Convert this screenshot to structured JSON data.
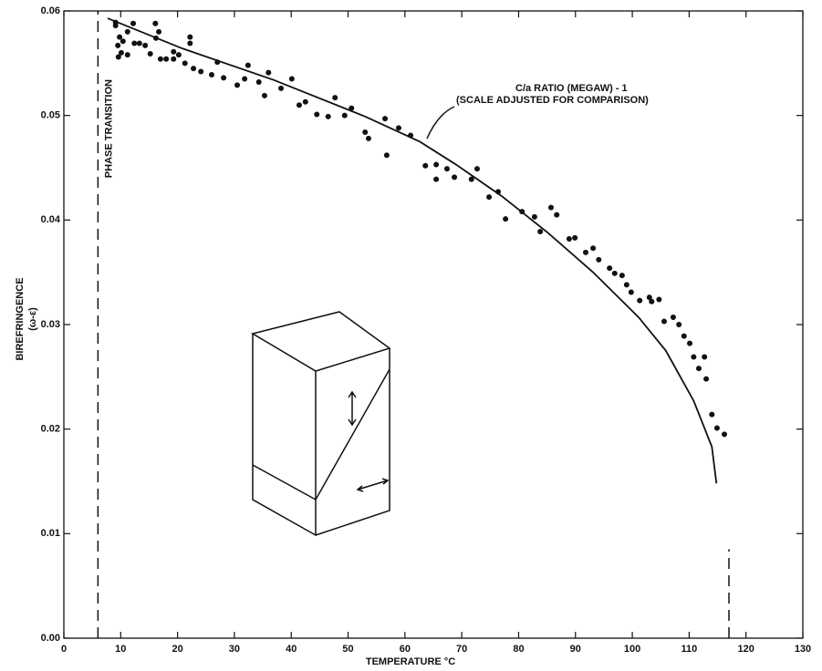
{
  "chart_data": {
    "type": "scatter",
    "xlabel": "TEMPERATURE °C",
    "ylabel": [
      "BIREFRINGENCE",
      "(ω-ε)"
    ],
    "xlim": [
      0,
      130
    ],
    "ylim": [
      0,
      0.06
    ],
    "xticks": [
      0,
      10,
      20,
      30,
      40,
      50,
      60,
      70,
      80,
      90,
      100,
      110,
      120,
      130
    ],
    "yticks": [
      {
        "value": 0,
        "label": "0.00"
      },
      {
        "value": 0.01,
        "label": "0.01"
      },
      {
        "value": 0.02,
        "label": "0.02"
      },
      {
        "value": 0.03,
        "label": "0.03"
      },
      {
        "value": 0.04,
        "label": "0.04"
      },
      {
        "value": 0.05,
        "label": "0.05"
      },
      {
        "value": 0.06,
        "label": "0.06"
      }
    ],
    "color": "#111111",
    "points": {
      "x": [
        9.1,
        9.1,
        9.8,
        9.5,
        10.4,
        10.1,
        9.6,
        11.2,
        11.2,
        12.2,
        12.4,
        13.3,
        14.3,
        15.2,
        16.1,
        16.7,
        17,
        16.2,
        18,
        19.3,
        19.3,
        20.2,
        21.3,
        22.2,
        22.2,
        22.8,
        24.1,
        26,
        27,
        28.1,
        30.5,
        31.8,
        32.4,
        34.3,
        35.3,
        36,
        38.2,
        40.1,
        41.4,
        42.5,
        44.5,
        46.5,
        47.7,
        49.4,
        50.6,
        53,
        53.6,
        56.5,
        56.8,
        58.9,
        61,
        63.6,
        65.5,
        65.5,
        67.4,
        68.7,
        71.7,
        72.7,
        74.8,
        76.4,
        77.7,
        80.6,
        82.8,
        83.8,
        85.7,
        86.7,
        88.9,
        89.9,
        91.8,
        93.1,
        94.1,
        96,
        96.9,
        98.2,
        99,
        99.8,
        101.3,
        103,
        103.4,
        104.7,
        105.6,
        107.2,
        108.2,
        109.1,
        110.1,
        110.8,
        111.7,
        112.7,
        113,
        114,
        114.9,
        116.2
      ],
      "y": [
        0.0589,
        0.0586,
        0.0575,
        0.0567,
        0.0571,
        0.056,
        0.0556,
        0.058,
        0.0558,
        0.0588,
        0.0569,
        0.0569,
        0.0567,
        0.0559,
        0.0588,
        0.058,
        0.0554,
        0.0574,
        0.0554,
        0.0554,
        0.0561,
        0.0558,
        0.055,
        0.0575,
        0.0569,
        0.0545,
        0.0542,
        0.0539,
        0.0551,
        0.0536,
        0.0529,
        0.0535,
        0.0548,
        0.0532,
        0.0519,
        0.0541,
        0.0526,
        0.0535,
        0.051,
        0.0513,
        0.0501,
        0.0499,
        0.0517,
        0.05,
        0.0507,
        0.0484,
        0.0478,
        0.0497,
        0.0462,
        0.0488,
        0.0481,
        0.0452,
        0.0453,
        0.0439,
        0.0449,
        0.0441,
        0.0439,
        0.0449,
        0.0422,
        0.0427,
        0.0401,
        0.0408,
        0.0403,
        0.0389,
        0.0412,
        0.0405,
        0.0382,
        0.0383,
        0.0369,
        0.0373,
        0.0362,
        0.0354,
        0.0349,
        0.0347,
        0.0338,
        0.0331,
        0.0323,
        0.0326,
        0.0322,
        0.0324,
        0.0303,
        0.0307,
        0.03,
        0.0289,
        0.0282,
        0.0269,
        0.0258,
        0.0269,
        0.0248,
        0.0214,
        0.0201,
        0.0195
      ]
    },
    "curve": {
      "label": [
        "C/a RATIO (MEGAW) - 1",
        "(SCALE ADJUSTED FOR COMPARISON)"
      ],
      "x": [
        7.7,
        20.9,
        36.9,
        53,
        62.6,
        69,
        77,
        85.1,
        93.1,
        101.1,
        105.9,
        110.8,
        114,
        114.8
      ],
      "y": [
        0.0593,
        0.0564,
        0.0534,
        0.0499,
        0.0475,
        0.0453,
        0.0423,
        0.0388,
        0.035,
        0.0307,
        0.0275,
        0.0227,
        0.0183,
        0.0148
      ]
    },
    "vlines": [
      {
        "x": 6,
        "label": "PHASE TRANSITION"
      },
      {
        "x": 117,
        "ymax": 0.0085
      }
    ]
  }
}
